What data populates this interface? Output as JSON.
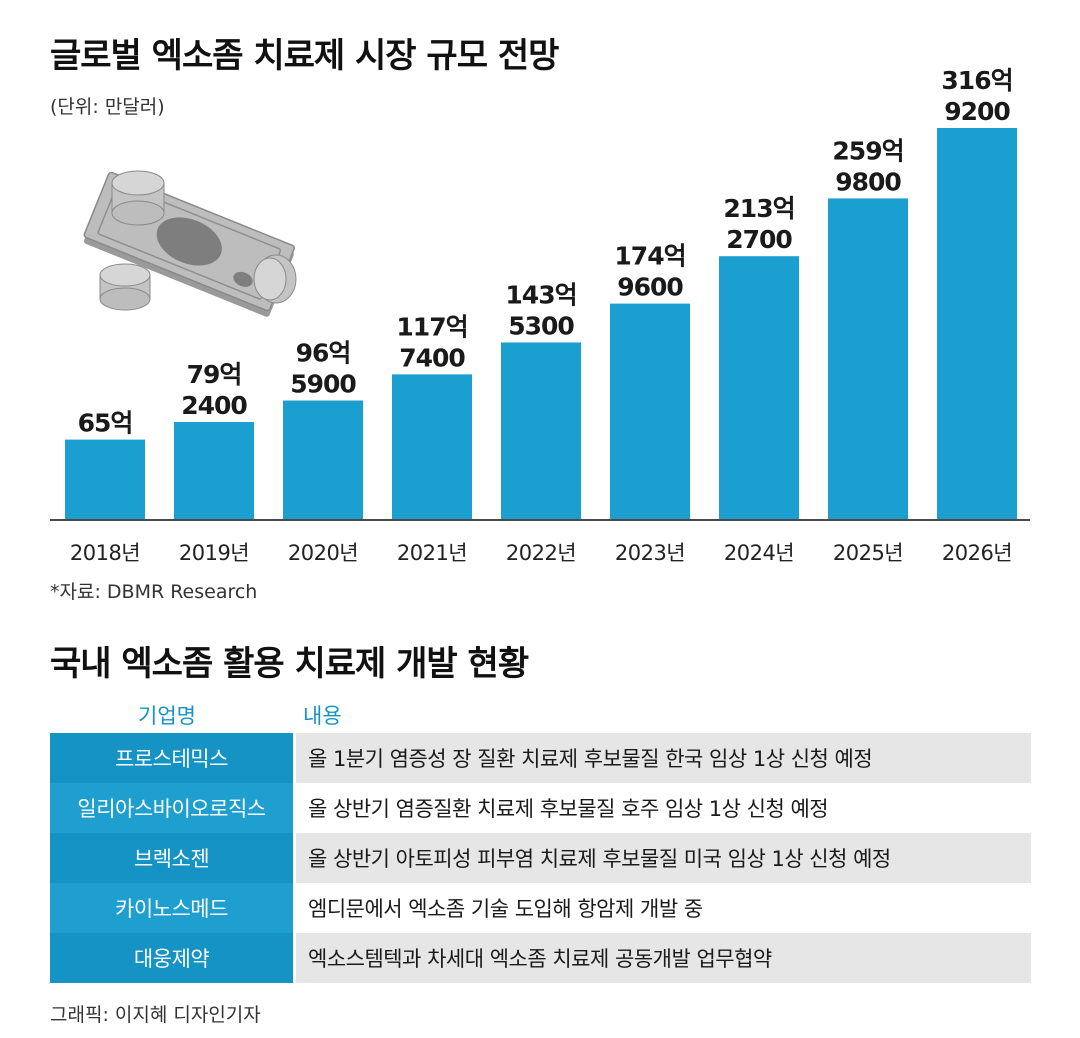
{
  "chart_data": {
    "type": "bar",
    "title": "글로벌 엑소좀 치료제 시장 규모 전망",
    "unit_note": "(단위: 만달러)",
    "categories": [
      "2018년",
      "2019년",
      "2020년",
      "2021년",
      "2022년",
      "2023년",
      "2024년",
      "2025년",
      "2026년"
    ],
    "values": [
      650000,
      792400,
      965900,
      1177400,
      1435300,
      1749600,
      2132700,
      2599800,
      3169200
    ],
    "value_labels": [
      [
        "65억"
      ],
      [
        "79억",
        "2400"
      ],
      [
        "96억",
        "5900"
      ],
      [
        "117억",
        "7400"
      ],
      [
        "143억",
        "5300"
      ],
      [
        "174억",
        "9600"
      ],
      [
        "213억",
        "2700"
      ],
      [
        "259억",
        "9800"
      ],
      [
        "316억",
        "9200"
      ]
    ],
    "ylim": [
      0,
      3169200
    ],
    "grid": false,
    "legend": "none",
    "colors": {
      "bar": "#1a9fd0",
      "baseline": "#4a4a4a"
    }
  },
  "source": "*자료: DBMR Research",
  "table": {
    "title": "국내 엑소좀 활용 치료제 개발 현황",
    "headers": {
      "company": "기업명",
      "content": "내용"
    },
    "rows": [
      {
        "company": "프로스테믹스",
        "content": "올 1분기 염증성 장 질환 치료제 후보물질 한국 임상 1상 신청 예정"
      },
      {
        "company": "일리아스바이오로직스",
        "content": "올 상반기 염증질환 치료제 후보물질 호주 임상 1상 신청 예정"
      },
      {
        "company": "브렉소젠",
        "content": "올 상반기 아토피성 피부염 치료제 후보물질 미국 임상 1상 신청 예정"
      },
      {
        "company": "카이노스메드",
        "content": "엠디문에서 엑소좀 기술 도입해 항암제 개발 중"
      },
      {
        "company": "대웅제약",
        "content": "엑소스템텍과 차세대 엑소좀 치료제 공동개발 업무협약"
      }
    ]
  },
  "credit": "그래픽: 이지혜 디자인기자",
  "illustration": {
    "icon": "money-stack-icon"
  }
}
